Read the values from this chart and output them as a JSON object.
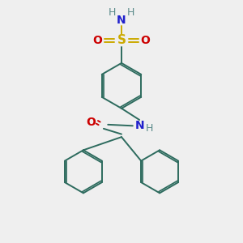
{
  "bg_color": "#efefef",
  "bond_color": "#2d6b5e",
  "N_color": "#2020cc",
  "O_color": "#cc0000",
  "S_color": "#ccaa00",
  "H_color": "#5a8a8a",
  "figsize": [
    3.0,
    3.0
  ],
  "dpi": 100,
  "xlim": [
    0,
    10
  ],
  "ylim": [
    0,
    10
  ]
}
